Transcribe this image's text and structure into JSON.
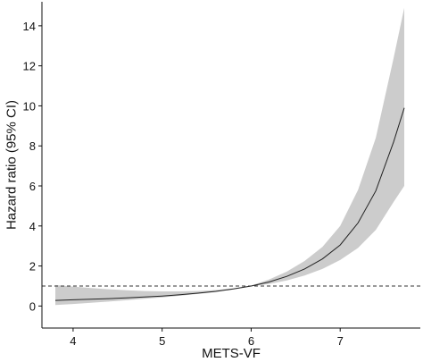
{
  "chart_data": {
    "type": "line",
    "xlabel": "METS-VF",
    "ylabel": "Hazard ratio (95% CI)",
    "xlim": [
      3.65,
      7.9
    ],
    "ylim": [
      -1.1,
      15.2
    ],
    "x_ticks": [
      4,
      5,
      6,
      7
    ],
    "y_ticks": [
      0,
      2,
      4,
      6,
      8,
      10,
      12,
      14
    ],
    "reference_line": {
      "y": 1,
      "style": "dashed"
    },
    "grid": false,
    "series": [
      {
        "x": [
          3.8,
          4.0,
          4.2,
          4.4,
          4.6,
          4.8,
          5.0,
          5.2,
          5.4,
          5.6,
          5.8,
          6.0,
          6.2,
          6.4,
          6.6,
          6.8,
          7.0,
          7.2,
          7.4,
          7.6,
          7.72
        ],
        "y": [
          0.28,
          0.31,
          0.34,
          0.37,
          0.41,
          0.45,
          0.5,
          0.56,
          0.64,
          0.73,
          0.85,
          1.0,
          1.2,
          1.48,
          1.85,
          2.35,
          3.05,
          4.15,
          5.75,
          8.2,
          9.9
        ],
        "lower": [
          0.05,
          0.1,
          0.16,
          0.22,
          0.29,
          0.36,
          0.43,
          0.51,
          0.6,
          0.7,
          0.83,
          0.98,
          1.1,
          1.28,
          1.52,
          1.85,
          2.3,
          2.9,
          3.8,
          5.2,
          6.0
        ],
        "upper": [
          1.05,
          0.97,
          0.9,
          0.84,
          0.79,
          0.75,
          0.73,
          0.73,
          0.75,
          0.8,
          0.88,
          1.02,
          1.32,
          1.72,
          2.25,
          2.95,
          4.0,
          5.8,
          8.4,
          12.4,
          14.9
        ],
        "line_color": "#222222",
        "band_color": "#cccccc"
      }
    ],
    "colors": {
      "panel_background": "#ffffff",
      "axis": "#111111",
      "reference_line": "#333333"
    }
  }
}
